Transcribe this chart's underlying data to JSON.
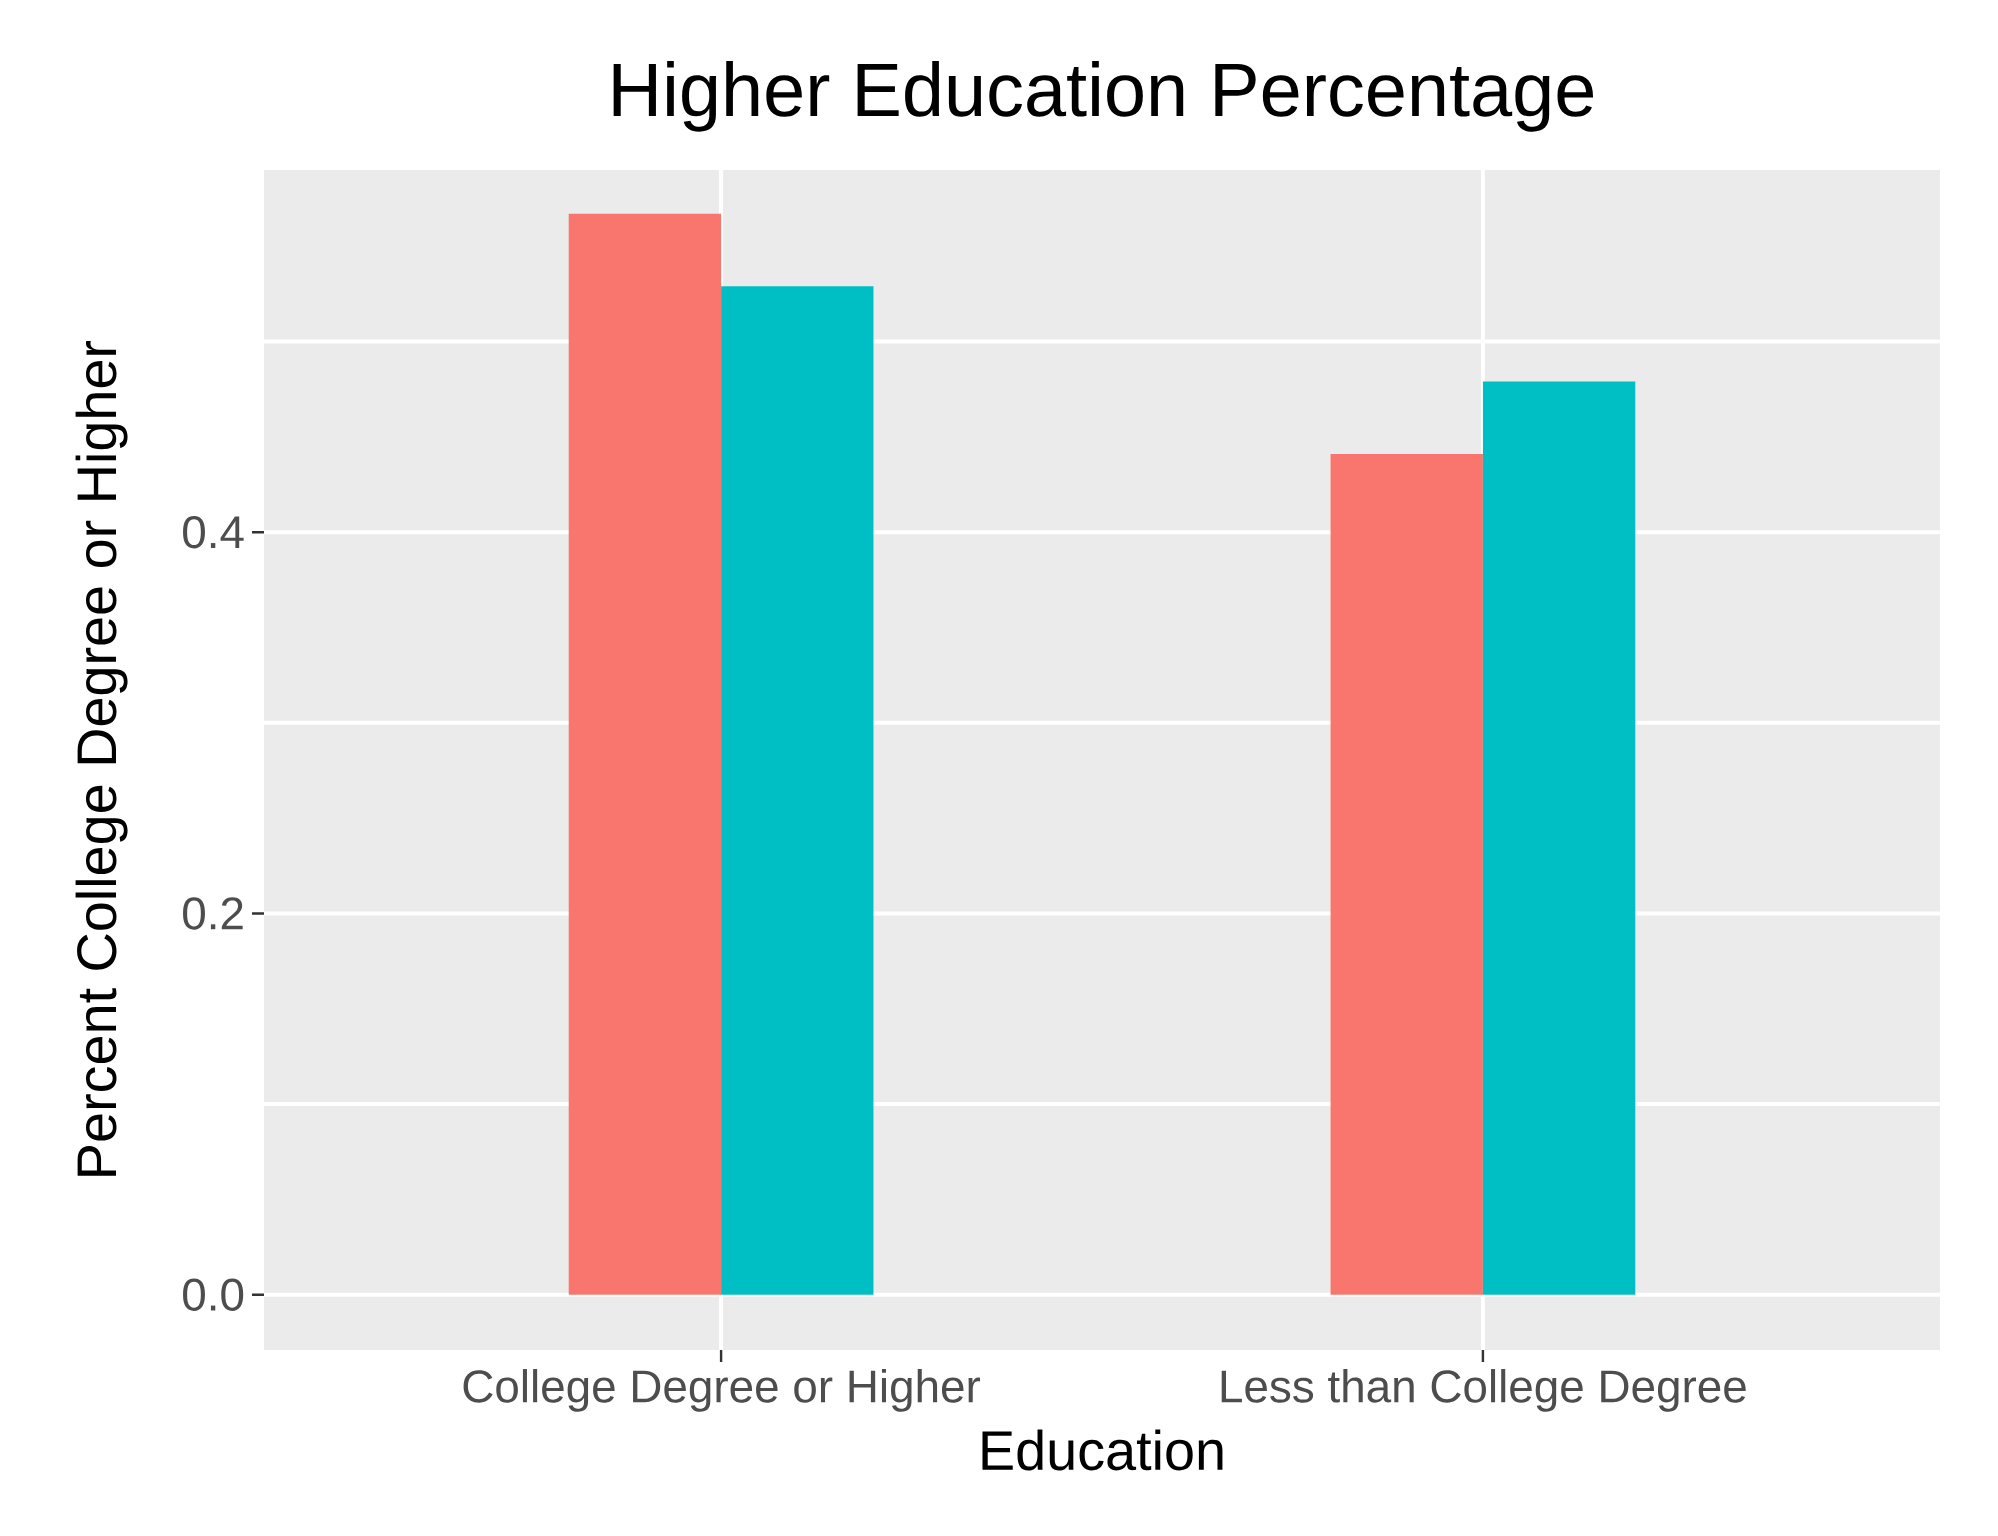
{
  "chart_data": {
    "type": "bar",
    "title": "Higher Education Percentage",
    "xlabel": "Education",
    "ylabel": "Percent College Degree or Higher",
    "categories": [
      "College Degree or Higher",
      "Less than College Degree"
    ],
    "series": [
      {
        "color": "#f8766d",
        "values": [
          0.567,
          0.441
        ]
      },
      {
        "color": "#00bfc4",
        "values": [
          0.529,
          0.479
        ]
      }
    ],
    "ylim": [
      -0.029,
      0.59
    ],
    "yticks": [
      {
        "value": 0,
        "label": "0.0"
      },
      {
        "value": 0.1,
        "label": null
      },
      {
        "value": 0.2,
        "label": "0.2"
      },
      {
        "value": 0.3,
        "label": null
      },
      {
        "value": 0.4,
        "label": "0.4"
      },
      {
        "value": 0.5,
        "label": null
      }
    ],
    "grid": true
  }
}
